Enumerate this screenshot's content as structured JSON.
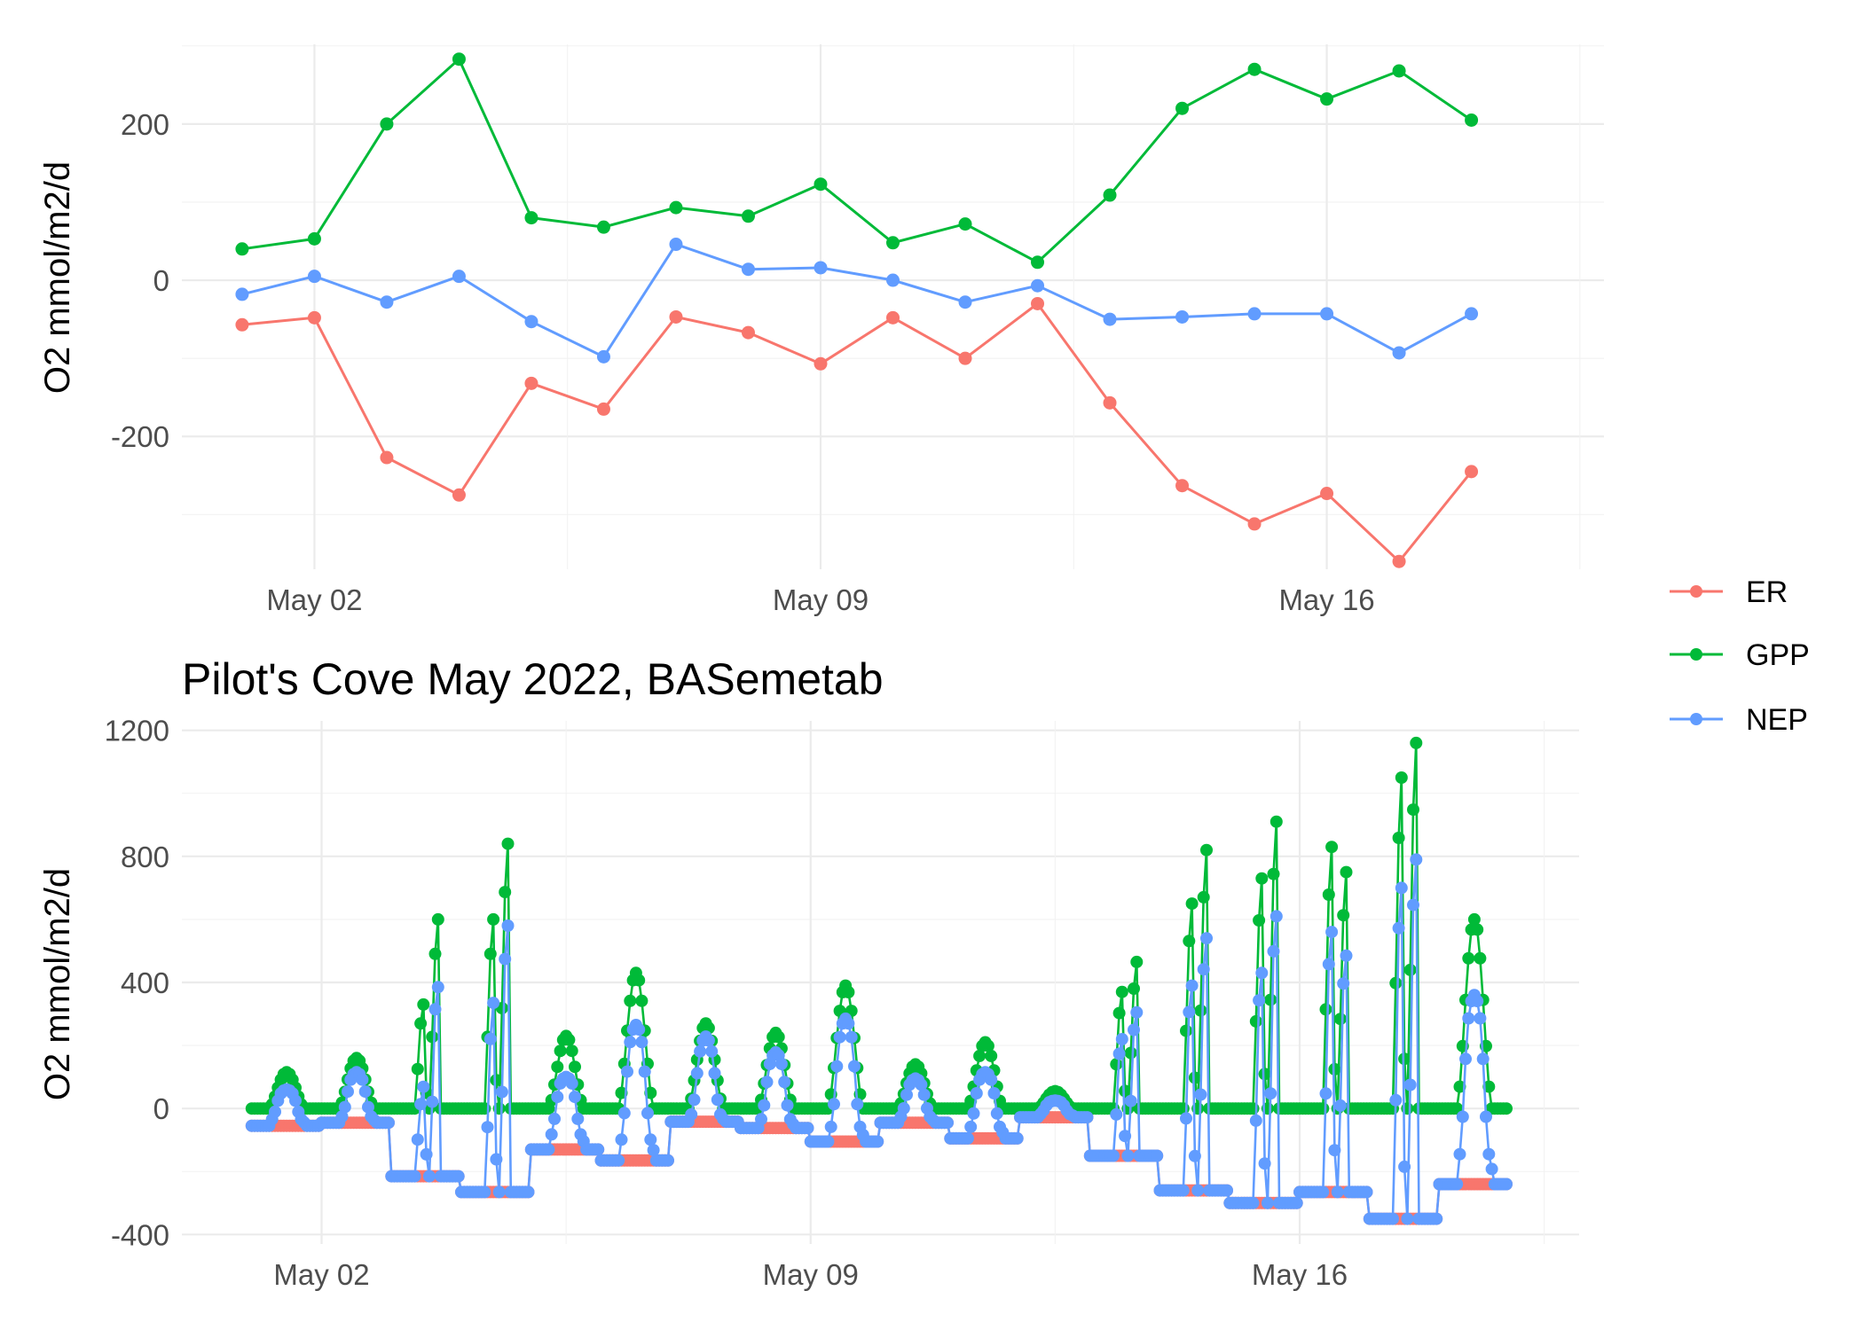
{
  "colors": {
    "ER": "#F8766D",
    "GPP": "#00BA38",
    "NEP": "#619CFF"
  },
  "legend": {
    "placement": "right",
    "entries": [
      "ER",
      "GPP",
      "NEP"
    ]
  },
  "chart_data": [
    {
      "type": "line",
      "title": "",
      "xlabel": "",
      "ylabel": "O2 mmol/m2/d",
      "x_type": "date",
      "x_ticks": [
        "May 02",
        "May 09",
        "May 16"
      ],
      "y_ticks": [
        -200,
        0,
        200
      ],
      "xlim": [
        "2022-04-30T04:00",
        "2022-05-19T20:00"
      ],
      "ylim": [
        -370,
        302
      ],
      "grid": true,
      "x": [
        "2022-05-01",
        "2022-05-02",
        "2022-05-03",
        "2022-05-04",
        "2022-05-05",
        "2022-05-06",
        "2022-05-07",
        "2022-05-08",
        "2022-05-09",
        "2022-05-10",
        "2022-05-11",
        "2022-05-12",
        "2022-05-13",
        "2022-05-14",
        "2022-05-15",
        "2022-05-16",
        "2022-05-17",
        "2022-05-18"
      ],
      "series": [
        {
          "name": "ER",
          "values": [
            -57,
            -48,
            -227,
            -275,
            -132,
            -165,
            -47,
            -67,
            -107,
            -48,
            -100,
            -30,
            -157,
            -263,
            -312,
            -273,
            -360,
            -245
          ]
        },
        {
          "name": "GPP",
          "values": [
            40,
            53,
            200,
            283,
            80,
            68,
            93,
            82,
            123,
            48,
            72,
            23,
            109,
            220,
            270,
            232,
            268,
            205
          ]
        },
        {
          "name": "NEP",
          "values": [
            -18,
            5,
            -28,
            5,
            -53,
            -98,
            46,
            14,
            16,
            0,
            -28,
            -7,
            -50,
            -47,
            -43,
            -43,
            -93,
            -43
          ]
        }
      ]
    },
    {
      "type": "line",
      "title": "Pilot's Cove May 2022, BASemetab",
      "xlabel": "",
      "ylabel": "O2 mmol/m2/d",
      "x_type": "date",
      "x_ticks": [
        "May 02",
        "May 09",
        "May 16"
      ],
      "y_ticks": [
        -400,
        0,
        400,
        800,
        1200
      ],
      "xlim": [
        "2022-04-30T00:00",
        "2022-05-20T00:00"
      ],
      "ylim": [
        -430,
        1230
      ],
      "grid": true,
      "x_start": "2022-05-01T00:00",
      "x_step_hours": 1,
      "series": [
        {
          "name": "ER",
          "daily_level": [
            -55,
            -45,
            -215,
            -265,
            -130,
            -165,
            -42,
            -62,
            -105,
            -45,
            -95,
            -28,
            -150,
            -260,
            -300,
            -265,
            -350,
            -240
          ]
        },
        {
          "name": "GPP",
          "daily_peaks": [
            [
              115
            ],
            [
              160
            ],
            [
              330,
              600
            ],
            [
              600,
              840
            ],
            [
              230
            ],
            [
              430
            ],
            [
              270
            ],
            [
              240
            ],
            [
              390
            ],
            [
              140
            ],
            [
              210
            ],
            [
              55
            ],
            [
              370,
              465
            ],
            [
              650,
              820
            ],
            [
              730,
              910
            ],
            [
              830,
              750
            ],
            [
              1050,
              1160
            ],
            [
              600
            ]
          ]
        },
        {
          "name": "NEP",
          "daily_peaks": [
            [
              60
            ],
            [
              115
            ],
            [
              115,
              385
            ],
            [
              335,
              580
            ],
            [
              100
            ],
            [
              265
            ],
            [
              228
            ],
            [
              178
            ],
            [
              285
            ],
            [
              95
            ],
            [
              115
            ],
            [
              25
            ],
            [
              220,
              305
            ],
            [
              390,
              540
            ],
            [
              430,
              610
            ],
            [
              560,
              485
            ],
            [
              700,
              790
            ],
            [
              360
            ]
          ]
        }
      ]
    }
  ]
}
